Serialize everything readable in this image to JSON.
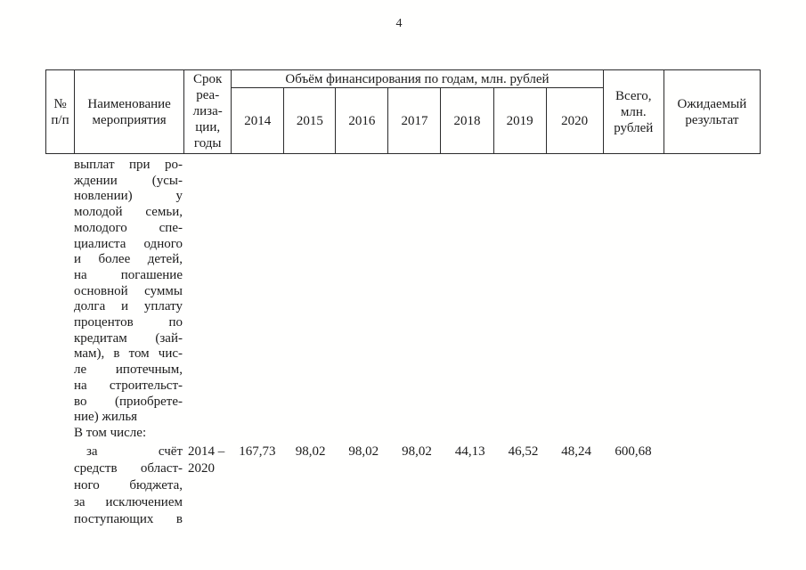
{
  "page": {
    "number": "4"
  },
  "table": {
    "header": {
      "col_num_lines": [
        "№",
        "п/п"
      ],
      "col_name_lines": [
        "Наименование",
        "мероприятия"
      ],
      "col_period_lines": [
        "Срок",
        "реа-",
        "лиза-",
        "ции,",
        "годы"
      ],
      "group_title": "Объём финансирования по годам, млн. рублей",
      "years": [
        "2014",
        "2015",
        "2016",
        "2017",
        "2018",
        "2019",
        "2020"
      ],
      "col_total_lines": [
        "Всего,",
        "млн.",
        "рублей"
      ],
      "col_result_lines": [
        "Ожидаемый",
        "результат"
      ]
    },
    "body": {
      "continuation_lines": [
        "выплат при ро-",
        "ждении (усы-",
        "новлении) у",
        "молодой семьи,",
        "молодого спе-",
        "циалиста одного",
        "и более детей,",
        "на погашение",
        "основной суммы",
        "долга и уплату",
        "процентов по",
        "кредитам (зай-",
        "мам), в том чис-",
        "ле ипотечным,",
        "на строительст-",
        "во (приобрете-",
        "ние) жилья"
      ],
      "subtotal_label": "В том числе:",
      "row": {
        "name_lines": [
          "за счёт",
          "средств област-",
          "ного бюджета,",
          "за исключением",
          "поступающих в"
        ],
        "period_lines": [
          "2014 –",
          "2020"
        ],
        "values": [
          "167,73",
          "98,02",
          "98,02",
          "98,02",
          "44,13",
          "46,52",
          "48,24"
        ],
        "total": "600,68"
      }
    }
  }
}
